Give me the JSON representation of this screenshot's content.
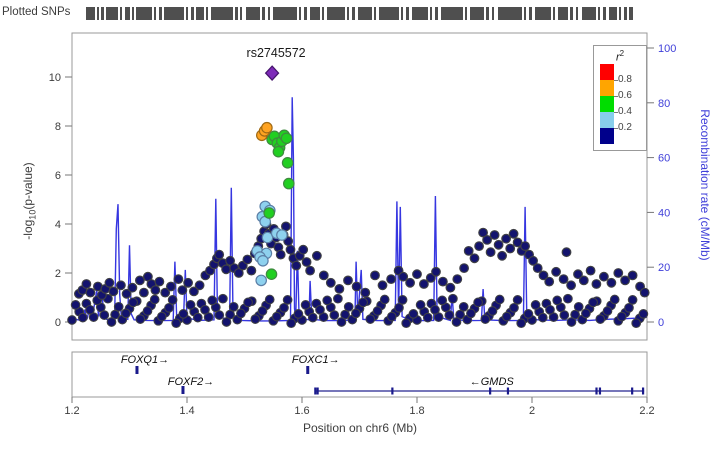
{
  "header": {
    "plotted_snps_label": "Plotted SNPs"
  },
  "rug": {
    "segments": [
      [
        0,
        9
      ],
      [
        11,
        2
      ],
      [
        15,
        3
      ],
      [
        20,
        12
      ],
      [
        34,
        2
      ],
      [
        39,
        5
      ],
      [
        46,
        2
      ],
      [
        50,
        16
      ],
      [
        68,
        2
      ],
      [
        73,
        3
      ],
      [
        78,
        20
      ],
      [
        100,
        2
      ],
      [
        105,
        3
      ],
      [
        110,
        8
      ],
      [
        120,
        2
      ],
      [
        125,
        22
      ],
      [
        149,
        3
      ],
      [
        154,
        2
      ],
      [
        160,
        14
      ],
      [
        176,
        3
      ],
      [
        182,
        2
      ],
      [
        187,
        24
      ],
      [
        213,
        2
      ],
      [
        218,
        3
      ],
      [
        224,
        10
      ],
      [
        236,
        2
      ],
      [
        241,
        18
      ],
      [
        261,
        2
      ],
      [
        266,
        3
      ],
      [
        272,
        14
      ],
      [
        288,
        2
      ],
      [
        293,
        20
      ],
      [
        315,
        2
      ],
      [
        320,
        3
      ],
      [
        326,
        16
      ],
      [
        344,
        2
      ],
      [
        349,
        3
      ],
      [
        355,
        22
      ],
      [
        379,
        2
      ],
      [
        384,
        14
      ],
      [
        400,
        3
      ],
      [
        406,
        2
      ],
      [
        412,
        24
      ],
      [
        438,
        2
      ],
      [
        443,
        3
      ],
      [
        449,
        16
      ],
      [
        467,
        2
      ],
      [
        472,
        10
      ],
      [
        484,
        3
      ],
      [
        490,
        2
      ],
      [
        496,
        14
      ],
      [
        512,
        2
      ],
      [
        517,
        3
      ],
      [
        523,
        8
      ],
      [
        533,
        2
      ],
      [
        538,
        3
      ],
      [
        543,
        4
      ]
    ],
    "color": "#4f4f4f"
  },
  "legend": {
    "title": "r",
    "title_sup": "2",
    "colors": [
      "#ff0000",
      "#ffa500",
      "#00dd00",
      "#87ceeb",
      "#00008b"
    ],
    "labels": [
      "0.8",
      "0.6",
      "0.4",
      "0.2"
    ]
  },
  "axes": {
    "y_left_title_prefix": "-log",
    "y_left_title_sub": "10",
    "y_left_title_suffix": "(p-value)",
    "y_left_ticks": [
      0,
      2,
      4,
      6,
      8,
      10
    ],
    "y_right_title": "Recombination rate (cM/Mb)",
    "y_right_ticks": [
      0,
      20,
      40,
      60,
      80,
      100
    ],
    "x_ticks": [
      "1.2",
      "1.4",
      "1.6",
      "1.8",
      "2",
      "2.2"
    ],
    "x_tick_values": [
      1.2,
      1.4,
      1.6,
      1.8,
      2.0,
      2.2
    ],
    "x_title": "Position on chr6 (Mb)"
  },
  "chart_data": {
    "type": "scatter",
    "title": "",
    "xlabel": "Position on chr6 (Mb)",
    "ylabel_left": "-log10(p-value)",
    "ylabel_right": "Recombination rate (cM/Mb)",
    "xlim": [
      1.2,
      2.2
    ],
    "ylim_left": [
      0,
      11.8
    ],
    "ylim_right": [
      0,
      105
    ],
    "lead_snp": {
      "label": "rs2745572",
      "x": 1.548,
      "y": 10.16,
      "color": "#7d2ab8"
    },
    "series": [
      {
        "name": "r2_0.6-0.8",
        "color": "#ffa321",
        "stroke": "#a06a14",
        "points": [
          [
            1.53,
            7.62
          ],
          [
            1.535,
            7.8
          ],
          [
            1.539,
            7.93
          ]
        ]
      },
      {
        "name": "r2_0.4-0.6",
        "color": "#21cf21",
        "stroke": "#3f8a3f",
        "points": [
          [
            1.548,
            7.45
          ],
          [
            1.552,
            7.58
          ],
          [
            1.557,
            7.3
          ],
          [
            1.561,
            7.12
          ],
          [
            1.565,
            7.38
          ],
          [
            1.569,
            7.62
          ],
          [
            1.573,
            7.5
          ],
          [
            1.559,
            6.95
          ],
          [
            1.575,
            6.5
          ],
          [
            1.577,
            5.65
          ],
          [
            1.543,
            4.45
          ],
          [
            1.547,
            1.95
          ]
        ]
      },
      {
        "name": "r2_0.2-0.4",
        "color": "#8ed1ee",
        "stroke": "#5b7fa6",
        "points": [
          [
            1.536,
            4.72
          ],
          [
            1.544,
            4.55
          ],
          [
            1.531,
            4.3
          ],
          [
            1.536,
            4.1
          ],
          [
            1.54,
            3.45
          ],
          [
            1.556,
            3.62
          ],
          [
            1.565,
            3.55
          ],
          [
            1.522,
            2.9
          ],
          [
            1.538,
            2.8
          ],
          [
            1.527,
            2.65
          ],
          [
            1.532,
            2.5
          ],
          [
            1.529,
            1.7
          ]
        ]
      },
      {
        "name": "r2_0.0-0.2",
        "color": "#13136e",
        "stroke": "#3f4045",
        "points": [
          [
            1.212,
            1.15
          ],
          [
            1.218,
            1.3
          ],
          [
            1.225,
            1.55
          ],
          [
            1.232,
            1.2
          ],
          [
            1.245,
            1.45
          ],
          [
            1.252,
            1.1
          ],
          [
            1.258,
            1.35
          ],
          [
            1.265,
            1.6
          ],
          [
            1.272,
            1.25
          ],
          [
            1.285,
            1.5
          ],
          [
            1.295,
            1.15
          ],
          [
            1.305,
            1.4
          ],
          [
            1.318,
            1.7
          ],
          [
            1.325,
            1.2
          ],
          [
            1.332,
            1.85
          ],
          [
            1.338,
            1.55
          ],
          [
            1.345,
            1.3
          ],
          [
            1.352,
            1.65
          ],
          [
            1.362,
            1.2
          ],
          [
            1.372,
            1.45
          ],
          [
            1.385,
            1.75
          ],
          [
            1.392,
            1.3
          ],
          [
            1.402,
            1.6
          ],
          [
            1.412,
            1.25
          ],
          [
            1.422,
            1.5
          ],
          [
            1.432,
            1.9
          ],
          [
            1.44,
            2.1
          ],
          [
            1.447,
            2.35
          ],
          [
            1.452,
            2.6
          ],
          [
            1.456,
            2.75
          ],
          [
            1.462,
            2.4
          ],
          [
            1.468,
            2.15
          ],
          [
            1.475,
            2.5
          ],
          [
            1.482,
            2.2
          ],
          [
            1.49,
            2.0
          ],
          [
            1.497,
            2.3
          ],
          [
            1.505,
            2.55
          ],
          [
            1.512,
            2.1
          ],
          [
            1.518,
            2.8
          ],
          [
            1.524,
            3.1
          ],
          [
            1.529,
            3.4
          ],
          [
            1.534,
            3.7
          ],
          [
            1.538,
            4.0
          ],
          [
            1.542,
            3.6
          ],
          [
            1.546,
            3.2
          ],
          [
            1.551,
            3.8
          ],
          [
            1.555,
            3.45
          ],
          [
            1.559,
            3.05
          ],
          [
            1.563,
            2.75
          ],
          [
            1.568,
            3.55
          ],
          [
            1.572,
            3.9
          ],
          [
            1.576,
            3.3
          ],
          [
            1.58,
            2.95
          ],
          [
            1.585,
            2.6
          ],
          [
            1.59,
            2.3
          ],
          [
            1.596,
            2.7
          ],
          [
            1.602,
            2.95
          ],
          [
            1.608,
            2.45
          ],
          [
            1.614,
            2.1
          ],
          [
            1.626,
            2.7
          ],
          [
            1.638,
            1.9
          ],
          [
            1.65,
            1.6
          ],
          [
            1.665,
            1.35
          ],
          [
            1.68,
            1.7
          ],
          [
            1.695,
            1.45
          ],
          [
            1.71,
            1.2
          ],
          [
            1.727,
            1.9
          ],
          [
            1.74,
            1.5
          ],
          [
            1.755,
            1.75
          ],
          [
            1.768,
            2.1
          ],
          [
            1.776,
            1.85
          ],
          [
            1.788,
            1.6
          ],
          [
            1.8,
            1.95
          ],
          [
            1.812,
            1.55
          ],
          [
            1.824,
            1.8
          ],
          [
            1.833,
            2.05
          ],
          [
            1.845,
            1.65
          ],
          [
            1.858,
            1.4
          ],
          [
            1.87,
            1.75
          ],
          [
            1.882,
            2.2
          ],
          [
            1.89,
            2.9
          ],
          [
            1.9,
            2.6
          ],
          [
            1.908,
            3.1
          ],
          [
            1.915,
            3.65
          ],
          [
            1.922,
            3.35
          ],
          [
            1.928,
            2.85
          ],
          [
            1.935,
            3.55
          ],
          [
            1.942,
            3.15
          ],
          [
            1.948,
            2.7
          ],
          [
            1.955,
            3.4
          ],
          [
            1.962,
            3.0
          ],
          [
            1.968,
            3.6
          ],
          [
            1.975,
            3.25
          ],
          [
            1.982,
            2.9
          ],
          [
            1.988,
            3.1
          ],
          [
            1.995,
            2.75
          ],
          [
            2.002,
            2.5
          ],
          [
            2.01,
            2.2
          ],
          [
            2.02,
            1.9
          ],
          [
            2.03,
            1.65
          ],
          [
            2.042,
            2.05
          ],
          [
            2.055,
            1.75
          ],
          [
            2.06,
            2.85
          ],
          [
            2.068,
            1.5
          ],
          [
            2.08,
            1.95
          ],
          [
            2.09,
            1.7
          ],
          [
            2.102,
            2.1
          ],
          [
            2.112,
            1.55
          ],
          [
            2.125,
            1.85
          ],
          [
            2.138,
            1.6
          ],
          [
            2.15,
            2.0
          ],
          [
            2.162,
            1.7
          ],
          [
            2.175,
            1.9
          ],
          [
            2.188,
            1.45
          ],
          [
            2.196,
            1.2
          ]
        ]
      }
    ],
    "baseline_band": [
      {
        "x0": 1.2,
        "dx": 0.0125,
        "count": 80,
        "y_pattern": [
          0.08,
          0.42,
          0.75,
          0.2,
          0.6,
          0.95,
          0.3,
          0.1,
          0.55,
          0.85,
          0.25,
          0.68,
          0.05,
          0.38,
          0.9,
          0.15
        ]
      },
      {
        "x0": 1.20625,
        "dx": 0.0125,
        "count": 80,
        "y_pattern": [
          0.7,
          0.18,
          0.5,
          0.88,
          0.28,
          0.0,
          0.62,
          0.35,
          0.8,
          0.12,
          0.45,
          0.92,
          0.22,
          0.58,
          -0.05,
          0.33
        ]
      }
    ],
    "recombination_line": {
      "color": "#3636e0",
      "points": [
        [
          1.2,
          1.5
        ],
        [
          1.21,
          0.8
        ],
        [
          1.218,
          0.6
        ],
        [
          1.222,
          4.5
        ],
        [
          1.226,
          1.0
        ],
        [
          1.231,
          5.5
        ],
        [
          1.235,
          1.2
        ],
        [
          1.243,
          11.5
        ],
        [
          1.246,
          2.0
        ],
        [
          1.252,
          13.0
        ],
        [
          1.255,
          1.5
        ],
        [
          1.262,
          0.8
        ],
        [
          1.274,
          0.8
        ],
        [
          1.277,
          34
        ],
        [
          1.28,
          43
        ],
        [
          1.283,
          10
        ],
        [
          1.286,
          1.2
        ],
        [
          1.297,
          1.0
        ],
        [
          1.3,
          28
        ],
        [
          1.303,
          3.0
        ],
        [
          1.308,
          0.8
        ],
        [
          1.33,
          0.6
        ],
        [
          1.355,
          0.5
        ],
        [
          1.376,
          0.6
        ],
        [
          1.379,
          22
        ],
        [
          1.382,
          2.5
        ],
        [
          1.394,
          1.0
        ],
        [
          1.397,
          19
        ],
        [
          1.4,
          1.5
        ],
        [
          1.42,
          0.6
        ],
        [
          1.447,
          0.8
        ],
        [
          1.45,
          45
        ],
        [
          1.453,
          2.0
        ],
        [
          1.474,
          0.8
        ],
        [
          1.477,
          49
        ],
        [
          1.48,
          2.5
        ],
        [
          1.495,
          0.6
        ],
        [
          1.52,
          0.4
        ],
        [
          1.55,
          0.4
        ],
        [
          1.58,
          0.6
        ],
        [
          1.583,
          82
        ],
        [
          1.585,
          60
        ],
        [
          1.587,
          5
        ],
        [
          1.589,
          1.0
        ],
        [
          1.592,
          26
        ],
        [
          1.595,
          1.5
        ],
        [
          1.612,
          0.8
        ],
        [
          1.614,
          15
        ],
        [
          1.617,
          1.0
        ],
        [
          1.64,
          0.5
        ],
        [
          1.67,
          0.5
        ],
        [
          1.692,
          0.8
        ],
        [
          1.694,
          22
        ],
        [
          1.697,
          2.0
        ],
        [
          1.703,
          19
        ],
        [
          1.706,
          1.0
        ],
        [
          1.73,
          0.5
        ],
        [
          1.762,
          0.6
        ],
        [
          1.765,
          44
        ],
        [
          1.768,
          3.0
        ],
        [
          1.771,
          42
        ],
        [
          1.774,
          2.0
        ],
        [
          1.79,
          0.5
        ],
        [
          1.815,
          0.5
        ],
        [
          1.829,
          0.6
        ],
        [
          1.832,
          46
        ],
        [
          1.835,
          2.0
        ],
        [
          1.858,
          0.6
        ],
        [
          1.861,
          10
        ],
        [
          1.864,
          0.8
        ],
        [
          1.89,
          0.5
        ],
        [
          1.912,
          0.6
        ],
        [
          1.915,
          12
        ],
        [
          1.918,
          0.8
        ],
        [
          1.95,
          0.5
        ],
        [
          1.985,
          0.6
        ],
        [
          1.988,
          42
        ],
        [
          1.991,
          1.5
        ],
        [
          2.01,
          0.8
        ],
        [
          2.04,
          0.6
        ],
        [
          2.07,
          0.8
        ],
        [
          2.1,
          0.6
        ],
        [
          2.13,
          1.0
        ],
        [
          2.16,
          1.2
        ],
        [
          2.19,
          1.5
        ],
        [
          2.2,
          1.8
        ]
      ]
    },
    "genes": [
      {
        "name": "FOXQ1",
        "label": "FOXQ1→",
        "row": 1,
        "type": "point",
        "mb": 1.313
      },
      {
        "name": "FOXF2",
        "label": "FOXF2→",
        "row": 2,
        "type": "point",
        "mb": 1.393
      },
      {
        "name": "FOXC1",
        "label": "FOXC1→",
        "row": 1,
        "type": "point",
        "mb": 1.61
      },
      {
        "name": "GMDS",
        "label": "←GMDS",
        "row": 2,
        "type": "span",
        "start": 1.623,
        "end": 2.195,
        "label_mb": 1.93,
        "exons": [
          1.623,
          1.627,
          1.757,
          1.927,
          1.958,
          2.112,
          2.118,
          2.174,
          2.193
        ]
      }
    ]
  }
}
